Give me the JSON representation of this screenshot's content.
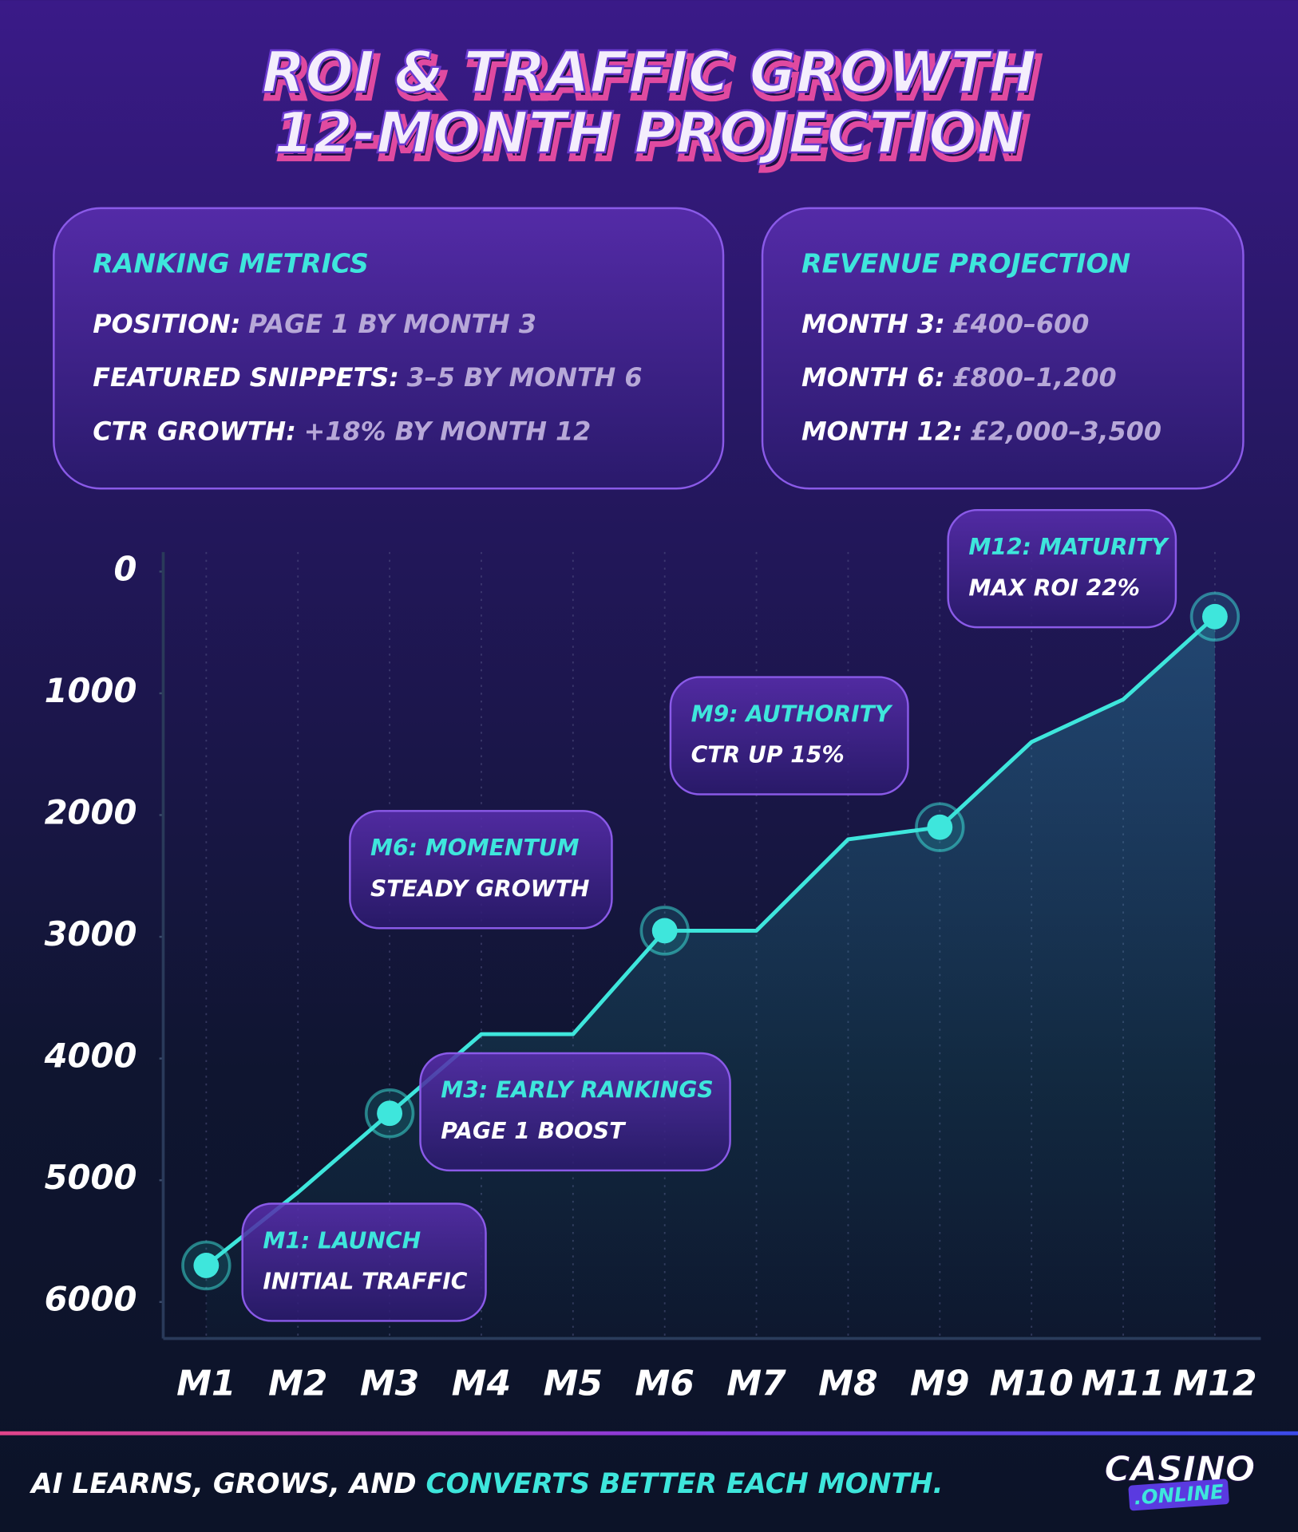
{
  "header": {
    "title_lines": [
      "ROI & TRAFFIC GROWTH",
      "12-MONTH PROJECTION"
    ]
  },
  "cards": [
    {
      "title": "RANKING METRICS",
      "rows": [
        {
          "label": "POSITION:",
          "value": "PAGE 1 BY MONTH 3"
        },
        {
          "label": "FEATURED SNIPPETS:",
          "value": "3–5 BY MONTH 6"
        },
        {
          "label": "CTR GROWTH:",
          "value": "+18% BY MONTH 12"
        }
      ]
    },
    {
      "title": "REVENUE PROJECTION",
      "rows": [
        {
          "label": "MONTH 3:",
          "value": "£400–600"
        },
        {
          "label": "MONTH 6:",
          "value": "£800–1,200"
        },
        {
          "label": "MONTH 12:",
          "value": "£2,000–3,500"
        }
      ]
    }
  ],
  "chart_data": {
    "type": "line",
    "categories": [
      "M1",
      "M2",
      "M3",
      "M4",
      "M5",
      "M6",
      "M7",
      "M8",
      "M9",
      "M10",
      "M11",
      "M12"
    ],
    "values": [
      5700,
      5100,
      4450,
      3800,
      3800,
      2950,
      2950,
      2200,
      2100,
      1400,
      1050,
      370
    ],
    "color": "#3ee6dc",
    "ylim": [
      0,
      6300
    ],
    "inverted": true,
    "yticks": [
      0,
      1000,
      2000,
      3000,
      4000,
      5000,
      6000
    ],
    "grid": "x",
    "annotations": [
      {
        "at": "M1",
        "title": "M1: LAUNCH",
        "text": "INITIAL TRAFFIC"
      },
      {
        "at": "M3",
        "title": "M3: EARLY RANKINGS",
        "text": "PAGE 1 BOOST"
      },
      {
        "at": "M6",
        "title": "M6: MOMENTUM",
        "text": "STEADY GROWTH"
      },
      {
        "at": "M9",
        "title": "M9: AUTHORITY",
        "text": "CTR UP 15%"
      },
      {
        "at": "M12",
        "title": "M12: MATURITY",
        "text": "MAX ROI 22%"
      }
    ]
  },
  "footer": {
    "text": "AI LEARNS, GROWS, AND ",
    "highlight": "CONVERTS BETTER EACH MONTH."
  },
  "logo": {
    "main": "CASINO",
    "sub": ".ONLINE"
  }
}
